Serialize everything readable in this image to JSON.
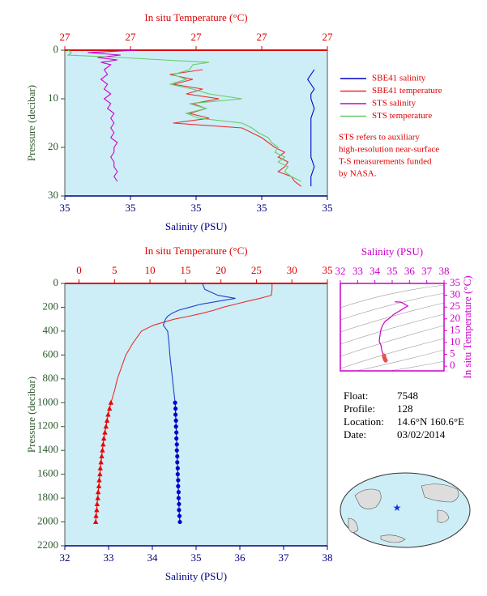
{
  "chart_data": [
    {
      "type": "profile",
      "xlabel_top": "In situ Temperature (°C)",
      "xlabel": "Salinity (PSU)",
      "ylabel": "Pressure (decibar)",
      "templim": [
        26.6,
        27.4
      ],
      "tempticks": [
        {
          "value": 26.6,
          "label": "27"
        },
        {
          "value": 26.8,
          "label": "27"
        },
        27,
        {
          "value": 27.2,
          "label": "27"
        },
        {
          "value": 27.4,
          "label": "27"
        }
      ],
      "sallim": [
        34.6,
        35.4
      ],
      "salticks": [
        {
          "value": 34.6,
          "label": "35"
        },
        {
          "value": 34.8,
          "label": "35"
        },
        35,
        {
          "value": 35.2,
          "label": "35"
        },
        {
          "value": 35.4,
          "label": "35"
        }
      ],
      "ylim": [
        0,
        30
      ],
      "yticks": [
        0,
        10,
        20,
        30
      ],
      "series": [
        {
          "name": "SBE41 salinity",
          "color": "#0000cc",
          "axis": "salinity",
          "pressure": [
            4,
            5,
            6,
            7,
            8,
            9,
            10,
            12,
            14,
            16,
            18,
            20,
            22,
            24,
            26,
            28
          ],
          "values": [
            35.36,
            35.35,
            35.34,
            35.35,
            35.36,
            35.35,
            35.35,
            35.36,
            35.35,
            35.35,
            35.35,
            35.35,
            35.35,
            35.36,
            35.35,
            35.35
          ]
        },
        {
          "name": "SBE41 temperature",
          "color": "#e83030",
          "axis": "temperature",
          "pressure": [
            4,
            5,
            6,
            7,
            8,
            9,
            10,
            11,
            12,
            13,
            14,
            15,
            16,
            17,
            18,
            19,
            20,
            21,
            22,
            23,
            24,
            25,
            26,
            27,
            28
          ],
          "values": [
            27.02,
            26.92,
            26.99,
            26.93,
            27.02,
            26.97,
            27.07,
            26.99,
            27.03,
            26.98,
            27.04,
            26.93,
            27.14,
            27.17,
            27.2,
            27.22,
            27.24,
            27.27,
            27.25,
            27.28,
            27.27,
            27.25,
            27.29,
            27.3,
            27.32
          ]
        },
        {
          "name": "STS salinity",
          "color": "#cc00cc",
          "axis": "salinity",
          "pressure": [
            0,
            0.5,
            1,
            1.5,
            2,
            2.5,
            3,
            4,
            5,
            6,
            7,
            8,
            9,
            10,
            11,
            12,
            13,
            14,
            15,
            16,
            17,
            18,
            19,
            20,
            21,
            22,
            23,
            24,
            25,
            26,
            27
          ],
          "values": [
            34.82,
            34.67,
            34.77,
            34.7,
            34.76,
            34.71,
            34.74,
            34.72,
            34.73,
            34.71,
            34.73,
            34.72,
            34.74,
            34.72,
            34.74,
            34.73,
            34.75,
            34.74,
            34.75,
            34.74,
            34.75,
            34.74,
            34.76,
            34.75,
            34.75,
            34.74,
            34.75,
            34.75,
            34.76,
            34.75,
            34.76
          ]
        },
        {
          "name": "STS temperature",
          "color": "#66cc66",
          "axis": "temperature",
          "pressure": [
            0,
            0.5,
            1,
            1.5,
            2,
            2.5,
            3,
            4,
            5,
            6,
            7,
            8,
            9,
            10,
            11,
            12,
            13,
            14,
            15,
            16,
            17,
            18,
            19,
            20,
            21,
            22,
            23,
            24,
            25,
            26,
            27
          ],
          "values": [
            26.61,
            26.62,
            26.61,
            26.77,
            26.9,
            27.04,
            26.99,
            26.98,
            26.93,
            26.97,
            26.92,
            26.99,
            27.04,
            27.14,
            26.98,
            27.03,
            26.97,
            27.01,
            27.14,
            27.17,
            27.19,
            27.22,
            27.23,
            27.25,
            27.24,
            27.27,
            27.25,
            27.28,
            27.27,
            27.29,
            27.32
          ]
        }
      ],
      "note": [
        "STS refers to auxiliary",
        "high-resolution near-surface",
        "T-S measurements funded",
        "by NASA."
      ]
    },
    {
      "type": "profile",
      "xlabel_top": "In situ Temperature (°C)",
      "xlabel": "Salinity (PSU)",
      "ylabel": "Pressure (decibar)",
      "templim": [
        -2,
        35
      ],
      "tempticks": [
        0,
        5,
        10,
        15,
        20,
        25,
        30,
        35
      ],
      "sallim": [
        32,
        38
      ],
      "salticks": [
        32,
        33,
        34,
        35,
        36,
        37,
        38
      ],
      "ylim": [
        0,
        2200
      ],
      "yticks": [
        0,
        200,
        400,
        600,
        800,
        1000,
        1200,
        1400,
        1600,
        1800,
        2000,
        2200
      ],
      "series": [
        {
          "color": "#e83030",
          "axis": "temperature",
          "pressure": [
            5,
            50,
            100,
            125,
            150,
            175,
            200,
            225,
            250,
            275,
            300,
            350,
            400,
            500,
            600,
            700,
            800,
            900,
            1000
          ],
          "values": [
            27.2,
            27.2,
            27.1,
            25.5,
            23.7,
            22.0,
            20.3,
            19.0,
            17.4,
            15.5,
            13.4,
            10.5,
            8.8,
            7.6,
            6.6,
            6.0,
            5.4,
            5.0,
            4.5
          ]
        },
        {
          "color": "#2040cc",
          "axis": "salinity",
          "pressure": [
            5,
            50,
            100,
            125,
            150,
            175,
            200,
            225,
            250,
            275,
            300,
            350,
            400,
            500,
            600,
            700,
            800,
            900,
            1000
          ],
          "values": [
            35.15,
            35.2,
            35.5,
            35.9,
            35.5,
            35.1,
            34.85,
            34.6,
            34.45,
            34.35,
            34.3,
            34.25,
            34.35,
            34.38,
            34.4,
            34.43,
            34.46,
            34.49,
            34.52
          ]
        },
        {
          "color": "#ee0000",
          "axis": "temperature",
          "marker": "triangle",
          "pressure": [
            1000,
            1050,
            1100,
            1150,
            1200,
            1250,
            1300,
            1350,
            1400,
            1450,
            1500,
            1550,
            1600,
            1650,
            1700,
            1750,
            1800,
            1850,
            1900,
            1950,
            2000
          ],
          "values": [
            4.5,
            4.3,
            4.1,
            3.95,
            3.8,
            3.65,
            3.5,
            3.4,
            3.3,
            3.2,
            3.1,
            3.0,
            2.95,
            2.85,
            2.8,
            2.7,
            2.65,
            2.55,
            2.5,
            2.4,
            2.35
          ]
        },
        {
          "color": "#0000cc",
          "axis": "salinity",
          "marker": "circle",
          "pressure": [
            1000,
            1050,
            1100,
            1150,
            1200,
            1250,
            1300,
            1350,
            1400,
            1450,
            1500,
            1550,
            1600,
            1650,
            1700,
            1750,
            1800,
            1850,
            1900,
            1950,
            2000
          ],
          "values": [
            34.52,
            34.53,
            34.53,
            34.54,
            34.54,
            34.55,
            34.55,
            34.56,
            34.56,
            34.57,
            34.57,
            34.58,
            34.58,
            34.59,
            34.59,
            34.6,
            34.6,
            34.61,
            34.61,
            34.62,
            34.63
          ]
        }
      ]
    },
    {
      "type": "ts",
      "xlabel_top": "Salinity (PSU)",
      "ylabel_right": "In situ Temperature (°C)",
      "sallim": [
        32,
        38
      ],
      "salticks": [
        32,
        33,
        34,
        35,
        36,
        37,
        38
      ],
      "templim": [
        -2,
        35
      ],
      "tempticks": [
        0,
        5,
        10,
        15,
        20,
        25,
        30,
        35
      ],
      "line_color": "#cc00cc",
      "point_color": "#e85050"
    }
  ],
  "float_info": {
    "rows": [
      [
        "Float:",
        "7548"
      ],
      [
        "Profile:",
        "128"
      ],
      [
        "Location:",
        "14.6°N  160.6°E"
      ],
      [
        "Date:",
        "03/02/2014"
      ]
    ]
  }
}
